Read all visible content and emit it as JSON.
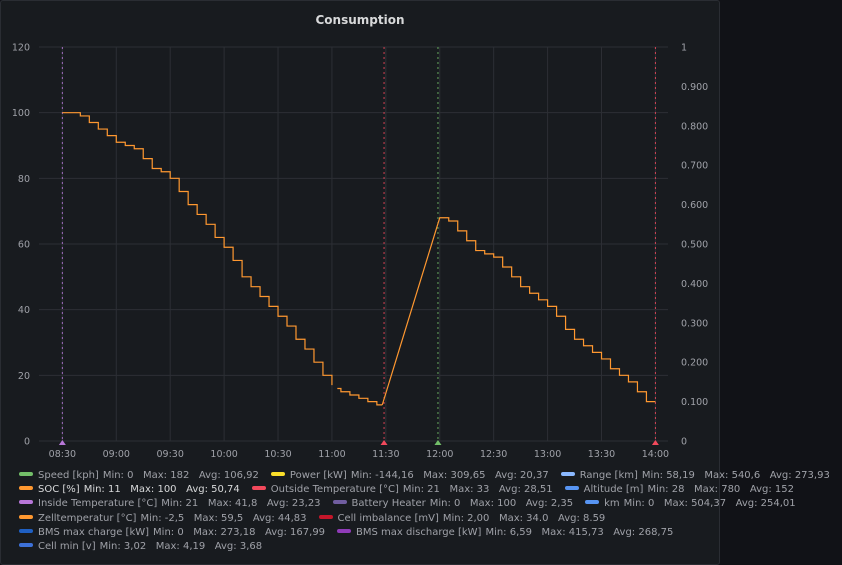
{
  "panel": {
    "title": "Consumption"
  },
  "chart_data": {
    "type": "line",
    "title": "Consumption",
    "x_ticks": [
      "08:30",
      "09:00",
      "09:30",
      "10:00",
      "10:30",
      "11:00",
      "11:30",
      "12:00",
      "12:30",
      "13:00",
      "13:30",
      "14:00"
    ],
    "xlim": [
      "08:17",
      "14:07"
    ],
    "y_left": {
      "ticks": [
        "0",
        "20",
        "40",
        "60",
        "80",
        "100",
        "120"
      ],
      "range": [
        0,
        120
      ]
    },
    "y_right": {
      "ticks": [
        "0",
        "0.100",
        "0.200",
        "0.300",
        "0.400",
        "0.500",
        "0.600",
        "0.700",
        "0.800",
        "0.900",
        "1"
      ],
      "range": [
        0,
        1
      ]
    },
    "grid": true,
    "legend_placement": "bottom",
    "series": [
      {
        "name": "SOC [%]",
        "color": "#ff9830",
        "segments": [
          {
            "x": [
              "08:30",
              "08:35",
              "08:40",
              "08:45",
              "08:50",
              "08:55",
              "09:00",
              "09:05",
              "09:10",
              "09:15",
              "09:20",
              "09:25",
              "09:30",
              "09:35",
              "09:40",
              "09:45",
              "09:50",
              "09:55",
              "10:00",
              "10:05",
              "10:10",
              "10:15",
              "10:20",
              "10:25",
              "10:30",
              "10:35",
              "10:40",
              "10:45",
              "10:50",
              "10:55",
              "11:00"
            ],
            "y": [
              100,
              100,
              99,
              97,
              95,
              93,
              91,
              90,
              89,
              86,
              83,
              82,
              80,
              76,
              72,
              69,
              66,
              62,
              59,
              55,
              50,
              47,
              44,
              41,
              38,
              35,
              31,
              28,
              24,
              20,
              17
            ]
          },
          {
            "x": [
              "11:03",
              "11:05",
              "11:10",
              "11:15",
              "11:20",
              "11:25",
              "11:28"
            ],
            "y": [
              16,
              15,
              14,
              13,
              12,
              11,
              11
            ]
          },
          {
            "x": [
              "11:28",
              "12:00",
              "12:05",
              "12:10",
              "12:15",
              "12:20",
              "12:25",
              "12:30",
              "12:35",
              "12:40",
              "12:45",
              "12:50",
              "12:55",
              "13:00",
              "13:05",
              "13:10",
              "13:15",
              "13:20",
              "13:25",
              "13:30",
              "13:35",
              "13:40",
              "13:45",
              "13:50",
              "13:55",
              "14:00"
            ],
            "y": [
              11,
              68,
              67,
              64,
              61,
              58,
              57,
              56,
              53,
              50,
              47,
              45,
              43,
              41,
              38,
              34,
              31,
              29,
              27,
              25,
              22,
              20,
              18,
              15,
              12,
              12
            ]
          }
        ]
      }
    ],
    "annotations": [
      {
        "x": "08:30",
        "color": "#b877d9"
      },
      {
        "x": "11:29",
        "color": "#f2495c"
      },
      {
        "x": "11:59",
        "color": "#73bf69"
      },
      {
        "x": "14:00",
        "color": "#f2495c"
      }
    ]
  },
  "legend": [
    [
      {
        "name": "Speed [kph]",
        "color": "#73bf69",
        "stats": "Min: 0   Max: 182   Avg: 106,92"
      },
      {
        "name": "Power [kW]",
        "color": "#fade2a",
        "stats": "Min: -144,16   Max: 309,65   Avg: 20,37"
      },
      {
        "name": "Range [km]",
        "color": "#8ab8ff",
        "stats": "Min: 58,19   Max: 540,6   Avg: 273,93"
      }
    ],
    [
      {
        "name": "SOC [%]",
        "color": "#ff9830",
        "stats": "Min: 11   Max: 100   Avg: 50,74",
        "active": true
      },
      {
        "name": "Outside Temperature [°C]",
        "color": "#f2495c",
        "stats": "Min: 21   Max: 33   Avg: 28,51"
      },
      {
        "name": "Altitude [m]",
        "color": "#5794f2",
        "stats": "Min: 28   Max: 780   Avg: 152"
      }
    ],
    [
      {
        "name": "Inside Temperature [°C]",
        "color": "#b877d9",
        "stats": "Min: 21   Max: 41,8   Avg: 23,23"
      },
      {
        "name": "Battery Heater",
        "color": "#705da0",
        "stats": "Min: 0   Max: 100   Avg: 2,35"
      },
      {
        "name": "km",
        "color": "#5794f2",
        "stats": "Min: 0   Max: 504,37   Avg: 254,01"
      }
    ],
    [
      {
        "name": "Zelltemperatur [°C]",
        "color": "#ff9830",
        "stats": "Min: -2,5   Max: 59,5   Avg: 44,83"
      },
      {
        "name": "Cell imbalance [mV]",
        "color": "#c4162a",
        "stats": "Min: 2,00   Max: 34.0   Avg: 8.59"
      }
    ],
    [
      {
        "name": "BMS max charge [kW]",
        "color": "#1f60c4",
        "stats": "Min: 0   Max: 273,18   Avg: 167,99"
      },
      {
        "name": "BMS max discharge [kW]",
        "color": "#8f3bb8",
        "stats": "Min: 6,59   Max: 415,73   Avg: 268,75"
      }
    ],
    [
      {
        "name": "Cell min [v]",
        "color": "#3d71d9",
        "stats": "Min: 3,02   Max: 4,19   Avg: 3,68"
      }
    ]
  ]
}
